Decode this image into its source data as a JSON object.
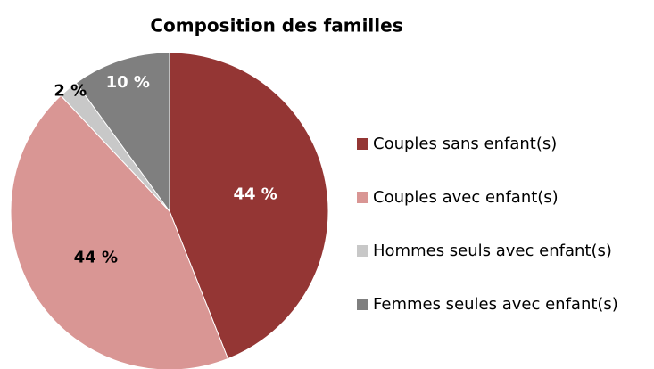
{
  "chart_data": {
    "type": "pie",
    "title": "Composition des familles",
    "categories": [
      "Couples sans enfant(s)",
      "Couples avec enfant(s)",
      "Hommes seuls avec enfant(s)",
      "Femmes seules avec enfant(s)"
    ],
    "values": [
      44,
      44,
      2,
      10
    ],
    "value_labels": [
      "44 %",
      "44 %",
      "2 %",
      "10 %"
    ],
    "colors": [
      "#943634",
      "#d99694",
      "#c8c8c8",
      "#7f7f7f"
    ],
    "legend": "right"
  }
}
